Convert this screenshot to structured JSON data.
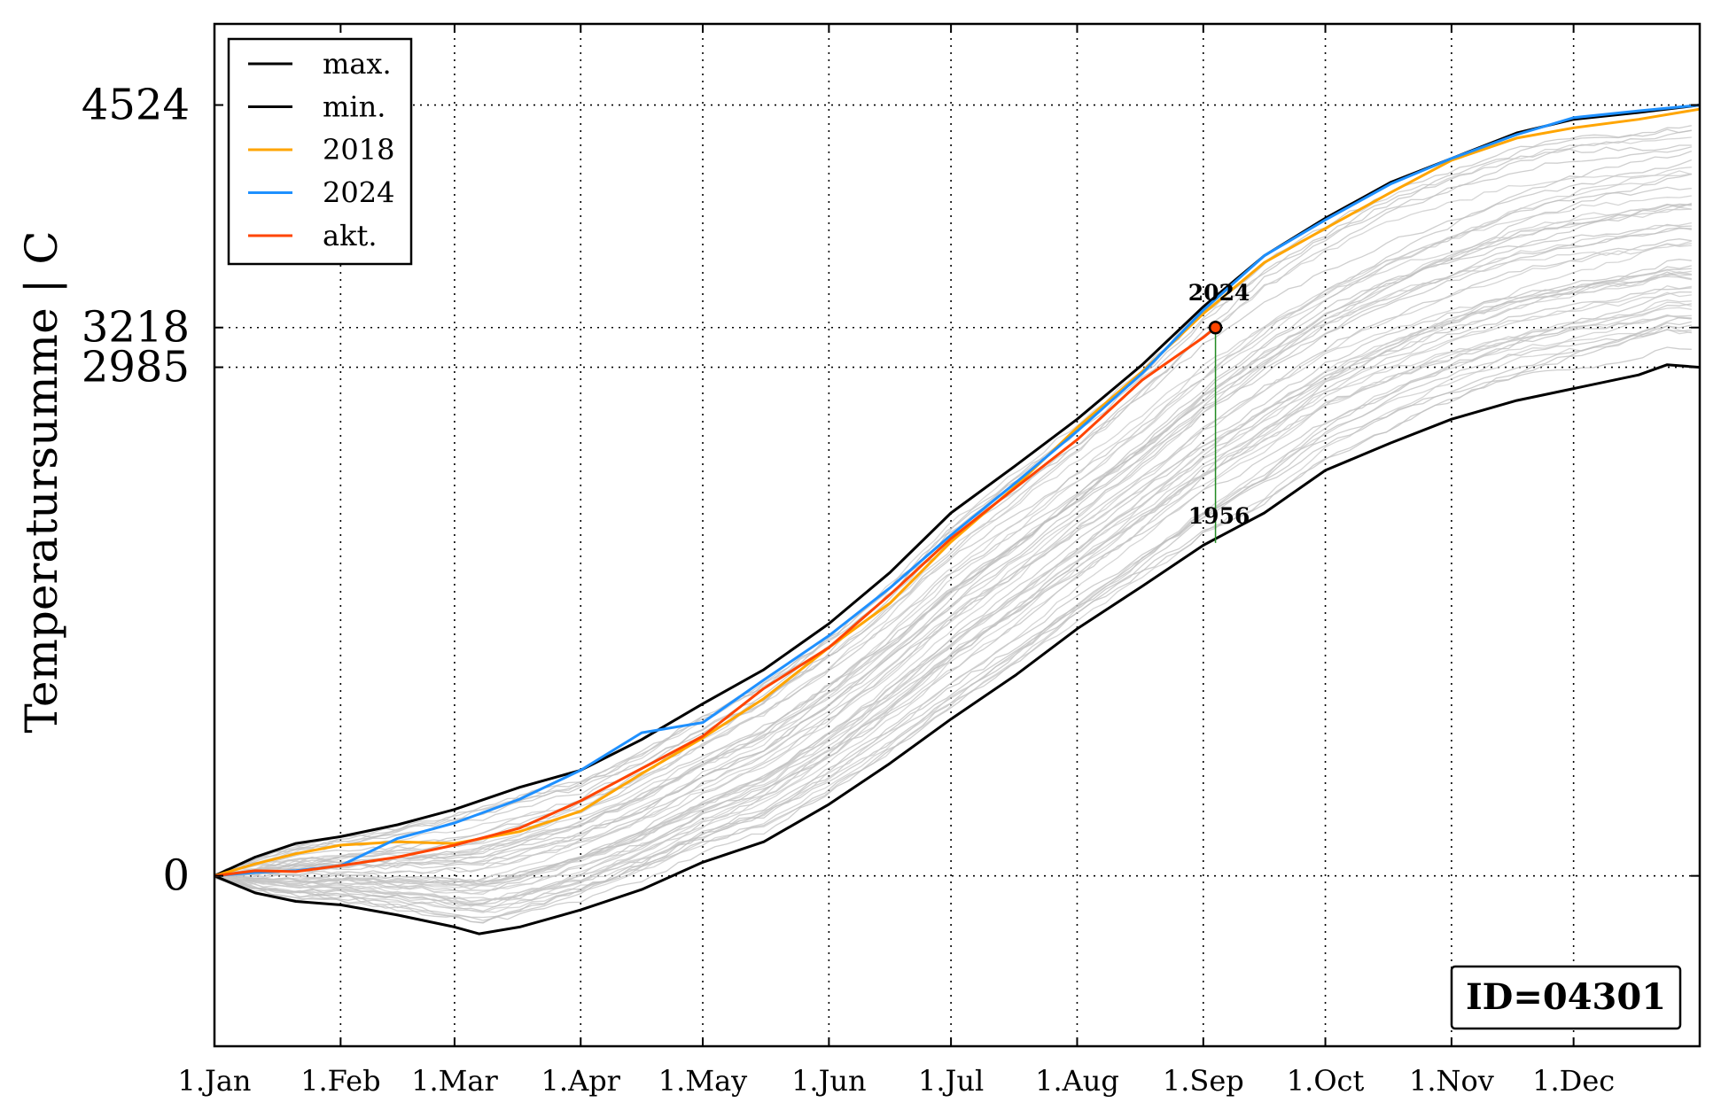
{
  "chart_data": {
    "type": "line",
    "ylabel": "Temperatursumme | C",
    "xlabel": "",
    "xlim": [
      0,
      365
    ],
    "ylim": [
      -1000,
      5000
    ],
    "x_tick_labels": [
      "1.Jan",
      "1.Feb",
      "1.Mar",
      "1.Apr",
      "1.May",
      "1.Jun",
      "1.Jul",
      "1.Aug",
      "1.Sep",
      "1.Oct",
      "1.Nov",
      "1.Dec"
    ],
    "x_tick_days": [
      0,
      31,
      59,
      90,
      120,
      151,
      181,
      212,
      243,
      273,
      304,
      334
    ],
    "y_ticks": [
      0,
      2985,
      3218,
      4524
    ],
    "y_tick_labels": [
      "0",
      "2985",
      "3218",
      "4524"
    ],
    "grid": "dotted",
    "legend_position": "top-left",
    "legend": [
      {
        "label": "max.",
        "color": "#000000"
      },
      {
        "label": "min.",
        "color": "#000000"
      },
      {
        "label": "2018",
        "color": "#ffa500"
      },
      {
        "label": "2024",
        "color": "#1e90ff"
      },
      {
        "label": "akt.",
        "color": "#ff4500"
      }
    ],
    "series": [
      {
        "name": "max.",
        "color": "#000000",
        "x": [
          0,
          10,
          20,
          31,
          45,
          59,
          75,
          90,
          105,
          120,
          135,
          151,
          166,
          181,
          197,
          212,
          228,
          243,
          258,
          273,
          289,
          304,
          320,
          334,
          350,
          365
        ],
        "y": [
          0,
          110,
          190,
          230,
          300,
          390,
          520,
          620,
          800,
          1010,
          1210,
          1480,
          1780,
          2130,
          2410,
          2680,
          3000,
          3340,
          3640,
          3860,
          4070,
          4210,
          4360,
          4440,
          4480,
          4524
        ]
      },
      {
        "name": "min.",
        "color": "#000000",
        "x": [
          0,
          10,
          20,
          31,
          45,
          59,
          65,
          75,
          90,
          105,
          120,
          135,
          151,
          166,
          181,
          197,
          212,
          228,
          243,
          258,
          273,
          289,
          304,
          320,
          334,
          350,
          357,
          365
        ],
        "y": [
          0,
          -100,
          -150,
          -170,
          -230,
          -300,
          -340,
          -300,
          -200,
          -80,
          80,
          200,
          420,
          660,
          920,
          1180,
          1450,
          1700,
          1940,
          2130,
          2380,
          2540,
          2680,
          2790,
          2860,
          2940,
          3000,
          2985
        ]
      },
      {
        "name": "2018",
        "color": "#ffa500",
        "x": [
          0,
          10,
          20,
          31,
          45,
          59,
          75,
          90,
          105,
          120,
          135,
          151,
          166,
          181,
          197,
          212,
          228,
          243,
          258,
          273,
          289,
          304,
          320,
          334,
          350,
          365
        ],
        "y": [
          0,
          70,
          130,
          180,
          200,
          190,
          260,
          380,
          600,
          810,
          1040,
          1340,
          1600,
          1960,
          2290,
          2630,
          2960,
          3300,
          3600,
          3800,
          4010,
          4200,
          4330,
          4390,
          4440,
          4500
        ]
      },
      {
        "name": "2024",
        "color": "#1e90ff",
        "x": [
          0,
          10,
          20,
          31,
          45,
          59,
          75,
          90,
          105,
          120,
          135,
          151,
          166,
          181,
          197,
          212,
          228,
          243,
          258,
          273,
          289,
          304,
          320,
          334,
          350,
          365
        ],
        "y": [
          0,
          20,
          30,
          60,
          220,
          310,
          450,
          620,
          840,
          900,
          1150,
          1410,
          1690,
          2000,
          2310,
          2610,
          2950,
          3320,
          3640,
          3850,
          4060,
          4210,
          4350,
          4450,
          4490,
          4524
        ]
      },
      {
        "name": "akt.",
        "color": "#ff4500",
        "x": [
          0,
          10,
          20,
          31,
          45,
          59,
          75,
          90,
          105,
          120,
          135,
          151,
          166,
          181,
          197,
          212,
          228,
          243,
          246
        ],
        "y": [
          0,
          30,
          25,
          60,
          110,
          180,
          280,
          440,
          630,
          820,
          1100,
          1340,
          1650,
          1980,
          2280,
          2560,
          2910,
          3160,
          3218
        ]
      }
    ],
    "highlight_point": {
      "x": 246,
      "y": 3218
    },
    "annotations": [
      {
        "text": "2024",
        "x": 246,
        "y": 3420
      },
      {
        "text": "1956",
        "x": 246,
        "y": 2110
      }
    ],
    "id_label": "ID=04301"
  }
}
